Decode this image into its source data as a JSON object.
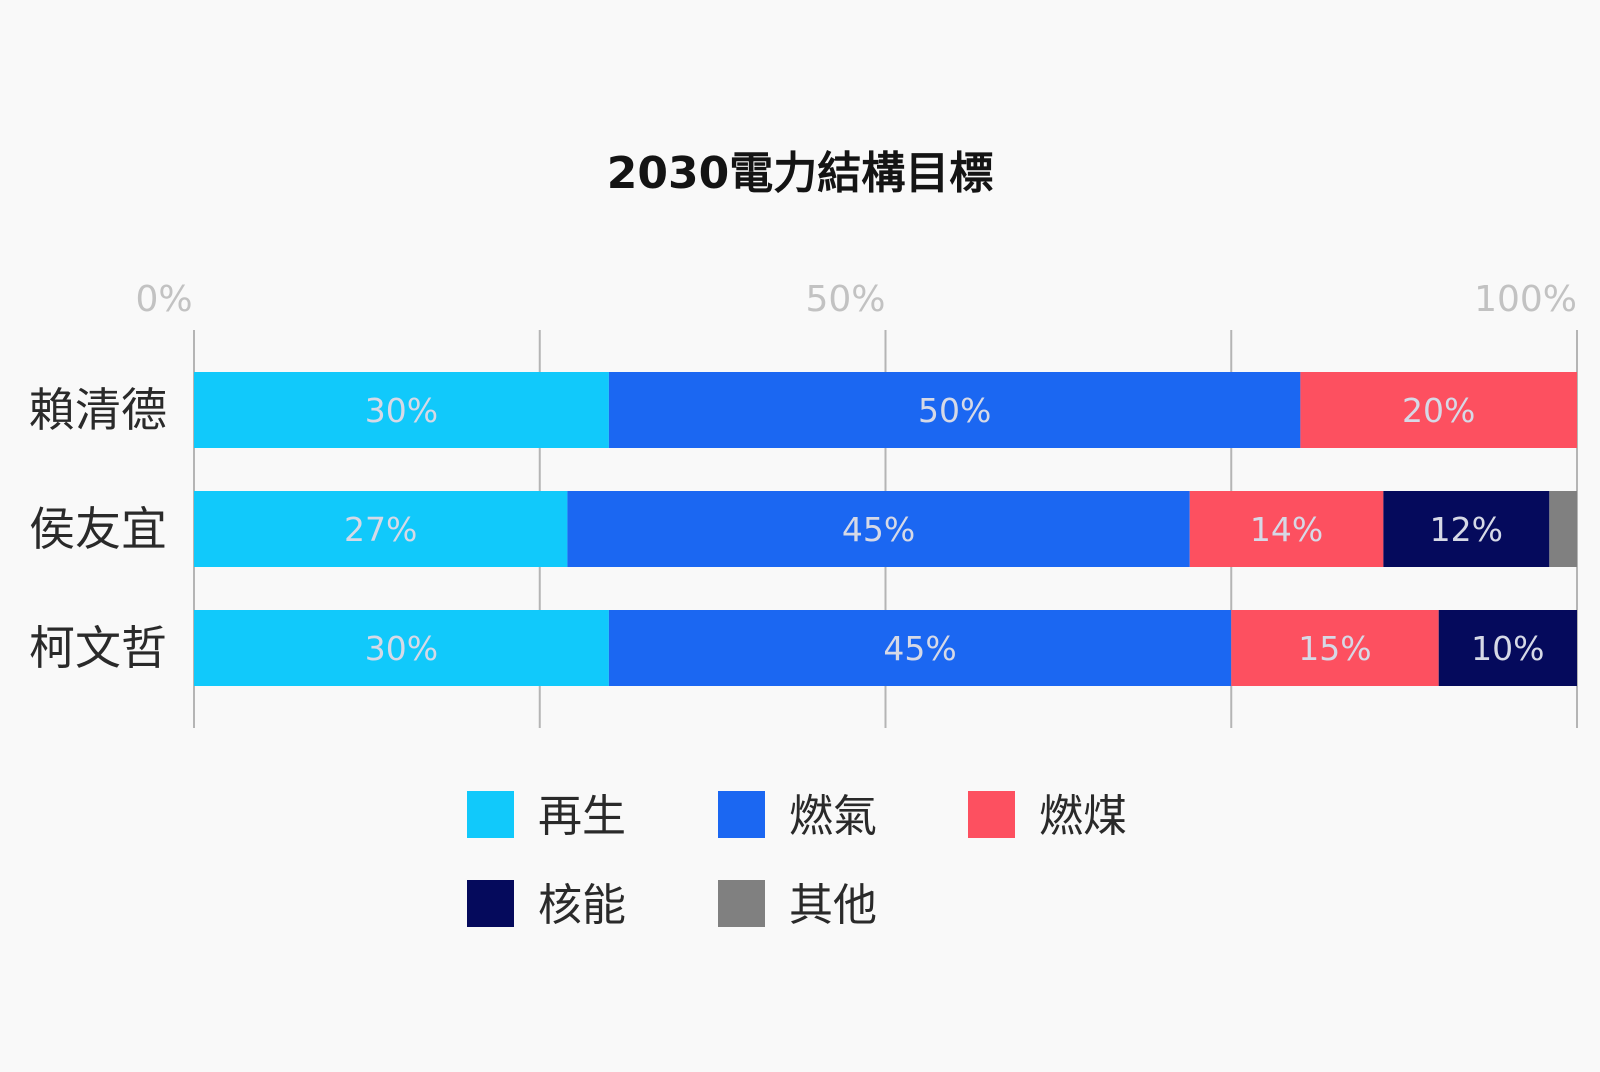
{
  "chart_data": {
    "type": "bar",
    "orientation": "horizontal",
    "stacked": true,
    "title": "2030電力結構目標",
    "xlim": [
      0,
      100
    ],
    "x_ticks": [
      "0%",
      "50%",
      "100%"
    ],
    "grid": true,
    "legend_position": "bottom",
    "categories": [
      "賴清德",
      "侯友宜",
      "柯文哲"
    ],
    "series": [
      {
        "name": "再生",
        "color": "#11c9fb",
        "values": [
          30,
          27,
          30
        ],
        "labels": [
          "30%",
          "27%",
          "30%"
        ]
      },
      {
        "name": "燃氣",
        "color": "#1b67f2",
        "values": [
          50,
          45,
          45
        ],
        "labels": [
          "50%",
          "45%",
          "45%"
        ]
      },
      {
        "name": "燃煤",
        "color": "#fd5060",
        "values": [
          20,
          14,
          15
        ],
        "labels": [
          "20%",
          "14%",
          "15%"
        ]
      },
      {
        "name": "核能",
        "color": "#050a5c",
        "values": [
          0,
          12,
          10
        ],
        "labels": [
          "",
          "12%",
          "10%"
        ]
      },
      {
        "name": "其他",
        "color": "#808080",
        "values": [
          0,
          2,
          0
        ],
        "labels": [
          "",
          "",
          ""
        ]
      }
    ]
  }
}
